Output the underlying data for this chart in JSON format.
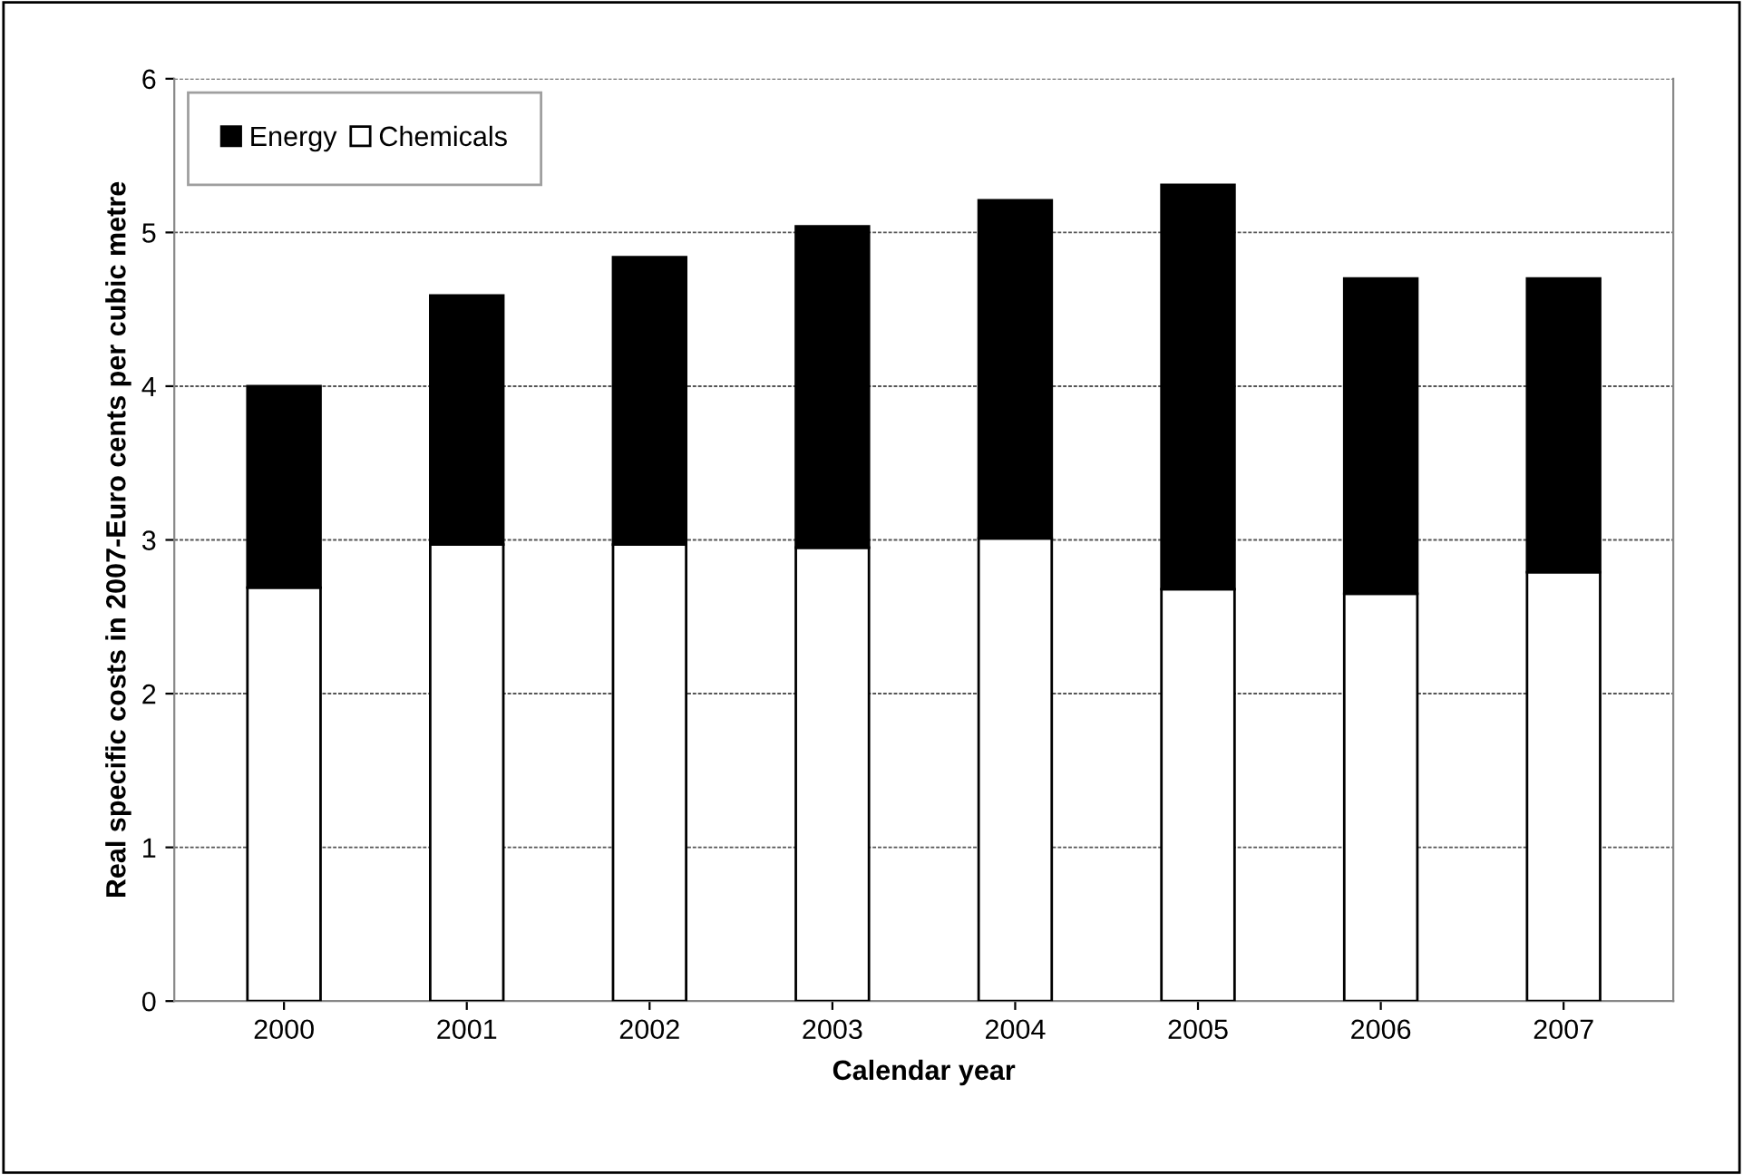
{
  "chart_data": {
    "type": "bar",
    "stacked": true,
    "xlabel": "Calendar year",
    "ylabel": "Real specific costs in 2007-Euro cents per cubic metre",
    "categories": [
      "2000",
      "2001",
      "2002",
      "2003",
      "2004",
      "2005",
      "2006",
      "2007"
    ],
    "series": [
      {
        "name": "Chemicals",
        "color": "#ffffff",
        "values": [
          2.69,
          2.97,
          2.97,
          2.95,
          3.01,
          2.68,
          2.65,
          2.79
        ]
      },
      {
        "name": "Energy",
        "color": "#000000",
        "values": [
          1.31,
          1.62,
          1.87,
          2.09,
          2.2,
          2.63,
          2.05,
          1.91
        ]
      }
    ],
    "ylim": [
      0,
      6
    ],
    "yticks": [
      0,
      1,
      2,
      3,
      4,
      5,
      6
    ],
    "grid": "y",
    "legend": "top left"
  }
}
